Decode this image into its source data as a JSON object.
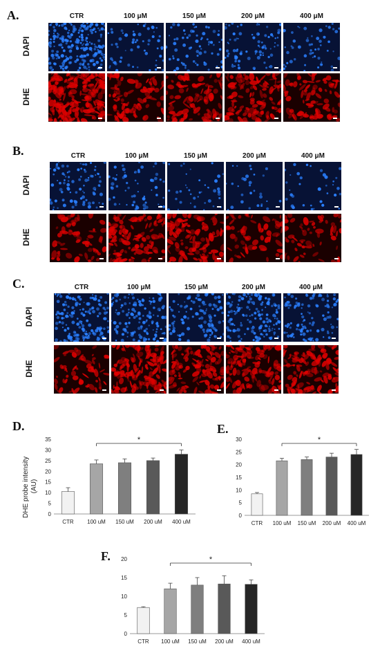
{
  "panels": [
    {
      "label": "A.",
      "columns": [
        "CTR",
        "100 μM",
        "150 μM",
        "200 μM",
        "400 μM"
      ],
      "rows": [
        "DAPI",
        "DHE"
      ]
    },
    {
      "label": "B.",
      "columns": [
        "CTR",
        "100 μM",
        "150 μM",
        "200 μM",
        "400 μM"
      ],
      "rows": [
        "DAPI",
        "DHE"
      ]
    },
    {
      "label": "C.",
      "columns": [
        "CTR",
        "100 μM",
        "150 μM",
        "200 μM",
        "400 μM"
      ],
      "rows": [
        "DAPI",
        "DHE"
      ]
    }
  ],
  "colors": {
    "dapi_bg": "#071235",
    "dapi_cell": "#2a7fff",
    "dhe_bg": "#1a0000",
    "dhe_cell": "#e00000"
  },
  "chart_data": [
    {
      "label": "D.",
      "type": "bar",
      "categories": [
        "CTR",
        "100 uM",
        "150 uM",
        "200 uM",
        "400 uM"
      ],
      "values": [
        10.5,
        23.5,
        24.0,
        25.0,
        28.0
      ],
      "errors": [
        1.8,
        1.8,
        1.8,
        1.2,
        2.0
      ],
      "ylabel": "DHE probe intensity\n(AU)",
      "ylim": [
        0,
        35
      ],
      "yticks": [
        0,
        5,
        10,
        15,
        20,
        25,
        30,
        35
      ],
      "significance": "*",
      "bar_colors": [
        "#f2f2f2",
        "#a6a6a6",
        "#7f7f7f",
        "#595959",
        "#262626"
      ]
    },
    {
      "label": "E.",
      "type": "bar",
      "categories": [
        "CTR",
        "100 uM",
        "150 uM",
        "200 uM",
        "400 uM"
      ],
      "values": [
        8.5,
        21.5,
        22.0,
        23.0,
        24.0
      ],
      "errors": [
        0.5,
        1.0,
        1.0,
        1.5,
        2.0
      ],
      "ylabel": "",
      "ylim": [
        0,
        30
      ],
      "yticks": [
        0,
        5,
        10,
        15,
        20,
        25,
        30
      ],
      "significance": "*",
      "bar_colors": [
        "#f2f2f2",
        "#a6a6a6",
        "#7f7f7f",
        "#595959",
        "#262626"
      ]
    },
    {
      "label": "F.",
      "type": "bar",
      "categories": [
        "CTR",
        "100 uM",
        "150 uM",
        "200 uM",
        "400 uM"
      ],
      "values": [
        7.0,
        12.0,
        13.0,
        13.3,
        13.2
      ],
      "errors": [
        0.2,
        1.5,
        2.0,
        2.2,
        1.2
      ],
      "ylabel": "",
      "ylim": [
        0,
        20
      ],
      "yticks": [
        0,
        5,
        10,
        15,
        20
      ],
      "significance": "*",
      "bar_colors": [
        "#f2f2f2",
        "#a6a6a6",
        "#7f7f7f",
        "#595959",
        "#262626"
      ]
    }
  ]
}
